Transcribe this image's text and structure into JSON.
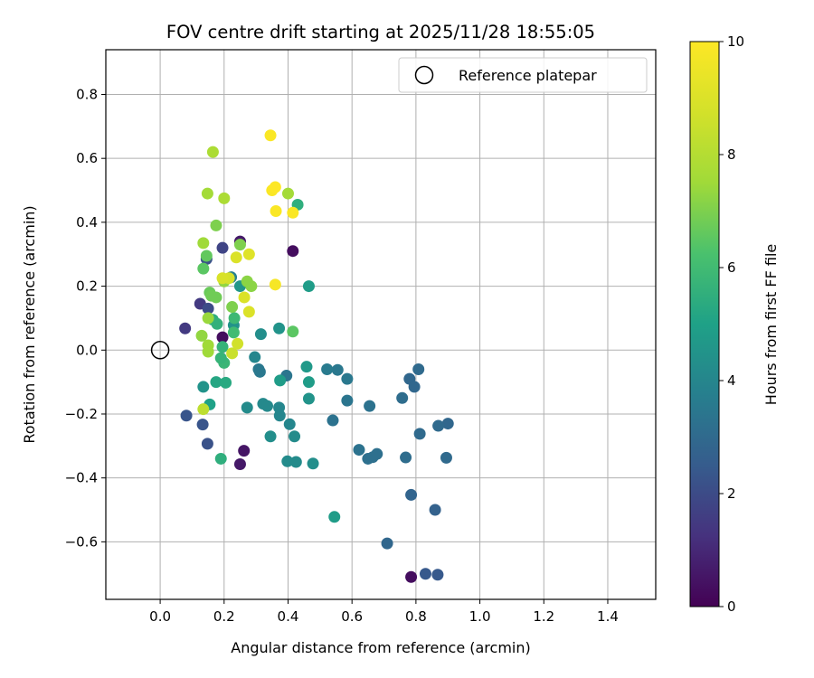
{
  "chart_data": {
    "type": "scatter",
    "title": "FOV centre drift starting at 2025/11/28 18:55:05",
    "xlabel": "Angular distance from reference (arcmin)",
    "ylabel": "Rotation from reference (arcmin)",
    "xlim": [
      -0.17,
      1.55
    ],
    "ylim": [
      -0.78,
      0.94
    ],
    "xticks": [
      0.0,
      0.2,
      0.4,
      0.6,
      0.8,
      1.0,
      1.2,
      1.4
    ],
    "xtick_labels": [
      "0.0",
      "0.2",
      "0.4",
      "0.6",
      "0.8",
      "1.0",
      "1.2",
      "1.4"
    ],
    "yticks": [
      0.8,
      0.6,
      0.4,
      0.2,
      0.0,
      -0.2,
      -0.4,
      -0.6
    ],
    "ytick_labels": [
      "0.8",
      "0.6",
      "0.4",
      "0.2",
      "0.0",
      "−0.2",
      "−0.4",
      "−0.6"
    ],
    "grid": true,
    "legend": {
      "position": "top-right",
      "entries": [
        "Reference platepar"
      ]
    },
    "reference_point": {
      "x": 0.0,
      "y": 0.0,
      "label": "Reference platepar"
    },
    "colorbar": {
      "label": "Hours from first FF file",
      "range": [
        0,
        10
      ],
      "ticks": [
        0,
        2,
        4,
        6,
        8,
        10
      ],
      "tick_labels": [
        "0",
        "2",
        "4",
        "6",
        "8",
        "10"
      ],
      "colormap": "viridis"
    },
    "series": [
      {
        "points": [
          {
            "x": 0.415,
            "y": 0.31,
            "h": 0.3
          },
          {
            "x": 0.195,
            "y": 0.04,
            "h": 0.3
          },
          {
            "x": 0.25,
            "y": 0.34,
            "h": 0.6
          },
          {
            "x": 0.262,
            "y": -0.315,
            "h": 0.5
          },
          {
            "x": 0.25,
            "y": -0.357,
            "h": 0.6
          },
          {
            "x": 0.785,
            "y": -0.71,
            "h": 0.3
          },
          {
            "x": 0.078,
            "y": 0.068,
            "h": 1.5
          },
          {
            "x": 0.125,
            "y": 0.145,
            "h": 1.5
          },
          {
            "x": 0.195,
            "y": 0.32,
            "h": 1.8
          },
          {
            "x": 0.15,
            "y": 0.13,
            "h": 2.0
          },
          {
            "x": 0.145,
            "y": 0.285,
            "h": 2.2
          },
          {
            "x": 0.082,
            "y": -0.205,
            "h": 2.3
          },
          {
            "x": 0.133,
            "y": -0.233,
            "h": 2.3
          },
          {
            "x": 0.148,
            "y": -0.293,
            "h": 2.2
          },
          {
            "x": 0.83,
            "y": -0.7,
            "h": 2.4
          },
          {
            "x": 0.868,
            "y": -0.703,
            "h": 2.4
          },
          {
            "x": 0.785,
            "y": -0.453,
            "h": 2.8
          },
          {
            "x": 0.86,
            "y": -0.5,
            "h": 2.7
          },
          {
            "x": 0.71,
            "y": -0.605,
            "h": 2.9
          },
          {
            "x": 0.9,
            "y": -0.23,
            "h": 2.9
          },
          {
            "x": 0.87,
            "y": -0.237,
            "h": 3.0
          },
          {
            "x": 0.895,
            "y": -0.337,
            "h": 3.0
          },
          {
            "x": 0.78,
            "y": -0.09,
            "h": 2.9
          },
          {
            "x": 0.795,
            "y": -0.115,
            "h": 2.9
          },
          {
            "x": 0.808,
            "y": -0.06,
            "h": 3.0
          },
          {
            "x": 0.812,
            "y": -0.262,
            "h": 3.0
          },
          {
            "x": 0.757,
            "y": -0.15,
            "h": 3.1
          },
          {
            "x": 0.768,
            "y": -0.336,
            "h": 3.1
          },
          {
            "x": 0.65,
            "y": -0.34,
            "h": 3.2
          },
          {
            "x": 0.665,
            "y": -0.335,
            "h": 3.2
          },
          {
            "x": 0.678,
            "y": -0.325,
            "h": 3.2
          },
          {
            "x": 0.622,
            "y": -0.312,
            "h": 3.3
          },
          {
            "x": 0.655,
            "y": -0.175,
            "h": 3.3
          },
          {
            "x": 0.54,
            "y": -0.22,
            "h": 3.3
          },
          {
            "x": 0.585,
            "y": -0.158,
            "h": 3.4
          },
          {
            "x": 0.585,
            "y": -0.09,
            "h": 3.5
          },
          {
            "x": 0.555,
            "y": -0.062,
            "h": 3.5
          },
          {
            "x": 0.522,
            "y": -0.06,
            "h": 3.6
          },
          {
            "x": 0.395,
            "y": -0.08,
            "h": 3.4
          },
          {
            "x": 0.308,
            "y": -0.06,
            "h": 3.5
          },
          {
            "x": 0.312,
            "y": -0.068,
            "h": 3.5
          },
          {
            "x": 0.296,
            "y": -0.022,
            "h": 4.0
          },
          {
            "x": 0.315,
            "y": 0.05,
            "h": 4.3
          },
          {
            "x": 0.372,
            "y": 0.068,
            "h": 4.5
          },
          {
            "x": 0.372,
            "y": -0.18,
            "h": 4.0
          },
          {
            "x": 0.374,
            "y": -0.205,
            "h": 4.0
          },
          {
            "x": 0.405,
            "y": -0.232,
            "h": 4.0
          },
          {
            "x": 0.42,
            "y": -0.27,
            "h": 4.2
          },
          {
            "x": 0.345,
            "y": -0.27,
            "h": 4.3
          },
          {
            "x": 0.398,
            "y": -0.348,
            "h": 4.2
          },
          {
            "x": 0.425,
            "y": -0.35,
            "h": 4.2
          },
          {
            "x": 0.478,
            "y": -0.355,
            "h": 4.3
          },
          {
            "x": 0.322,
            "y": -0.168,
            "h": 4.1
          },
          {
            "x": 0.335,
            "y": -0.175,
            "h": 4.1
          },
          {
            "x": 0.272,
            "y": -0.18,
            "h": 4.2
          },
          {
            "x": 0.465,
            "y": -0.152,
            "h": 4.5
          },
          {
            "x": 0.465,
            "y": -0.1,
            "h": 4.8
          },
          {
            "x": 0.458,
            "y": -0.052,
            "h": 4.7
          },
          {
            "x": 0.375,
            "y": -0.095,
            "h": 4.8
          },
          {
            "x": 0.545,
            "y": -0.522,
            "h": 4.8
          },
          {
            "x": 0.135,
            "y": -0.115,
            "h": 4.5
          },
          {
            "x": 0.23,
            "y": 0.078,
            "h": 4.5
          },
          {
            "x": 0.222,
            "y": 0.228,
            "h": 3.8
          },
          {
            "x": 0.25,
            "y": 0.2,
            "h": 4.6
          },
          {
            "x": 0.465,
            "y": 0.2,
            "h": 4.8
          },
          {
            "x": 0.155,
            "y": -0.17,
            "h": 5.0
          },
          {
            "x": 0.19,
            "y": -0.34,
            "h": 5.5
          },
          {
            "x": 0.175,
            "y": -0.1,
            "h": 5.2
          },
          {
            "x": 0.205,
            "y": -0.102,
            "h": 5.3
          },
          {
            "x": 0.43,
            "y": 0.455,
            "h": 5.5
          },
          {
            "x": 0.165,
            "y": 0.095,
            "h": 5.5
          },
          {
            "x": 0.178,
            "y": 0.082,
            "h": 5.6
          },
          {
            "x": 0.195,
            "y": 0.01,
            "h": 5.7
          },
          {
            "x": 0.2,
            "y": -0.04,
            "h": 5.8
          },
          {
            "x": 0.19,
            "y": -0.025,
            "h": 5.7
          },
          {
            "x": 0.232,
            "y": 0.1,
            "h": 5.9
          },
          {
            "x": 0.23,
            "y": 0.055,
            "h": 6.0
          },
          {
            "x": 0.415,
            "y": 0.058,
            "h": 6.5
          },
          {
            "x": 0.135,
            "y": 0.255,
            "h": 6.5
          },
          {
            "x": 0.145,
            "y": 0.295,
            "h": 6.6
          },
          {
            "x": 0.155,
            "y": 0.18,
            "h": 6.7
          },
          {
            "x": 0.175,
            "y": 0.165,
            "h": 6.8
          },
          {
            "x": 0.16,
            "y": 0.17,
            "h": 6.8
          },
          {
            "x": 0.175,
            "y": 0.39,
            "h": 7.0
          },
          {
            "x": 0.225,
            "y": 0.135,
            "h": 7.0
          },
          {
            "x": 0.272,
            "y": 0.215,
            "h": 7.2
          },
          {
            "x": 0.285,
            "y": 0.2,
            "h": 7.2
          },
          {
            "x": 0.25,
            "y": 0.33,
            "h": 7.0
          },
          {
            "x": 0.2,
            "y": 0.215,
            "h": 7.3
          },
          {
            "x": 0.13,
            "y": 0.045,
            "h": 7.3
          },
          {
            "x": 0.15,
            "y": 0.1,
            "h": 7.4
          },
          {
            "x": 0.15,
            "y": 0.015,
            "h": 7.5
          },
          {
            "x": 0.15,
            "y": -0.005,
            "h": 7.5
          },
          {
            "x": 0.135,
            "y": 0.335,
            "h": 7.5
          },
          {
            "x": 0.148,
            "y": 0.49,
            "h": 7.6
          },
          {
            "x": 0.4,
            "y": 0.49,
            "h": 7.6
          },
          {
            "x": 0.165,
            "y": 0.62,
            "h": 7.8
          },
          {
            "x": 0.2,
            "y": 0.475,
            "h": 7.8
          },
          {
            "x": 0.135,
            "y": -0.185,
            "h": 8.2
          },
          {
            "x": 0.225,
            "y": -0.01,
            "h": 8.5
          },
          {
            "x": 0.242,
            "y": 0.02,
            "h": 8.7
          },
          {
            "x": 0.215,
            "y": 0.225,
            "h": 8.8
          },
          {
            "x": 0.195,
            "y": 0.225,
            "h": 8.9
          },
          {
            "x": 0.238,
            "y": 0.29,
            "h": 9.0
          },
          {
            "x": 0.263,
            "y": 0.165,
            "h": 9.0
          },
          {
            "x": 0.278,
            "y": 0.3,
            "h": 9.1
          },
          {
            "x": 0.278,
            "y": 0.12,
            "h": 9.0
          },
          {
            "x": 0.36,
            "y": 0.205,
            "h": 9.8
          },
          {
            "x": 0.345,
            "y": 0.672,
            "h": 9.9
          },
          {
            "x": 0.35,
            "y": 0.5,
            "h": 9.9
          },
          {
            "x": 0.36,
            "y": 0.51,
            "h": 10.0
          },
          {
            "x": 0.362,
            "y": 0.435,
            "h": 9.9
          },
          {
            "x": 0.415,
            "y": 0.43,
            "h": 9.9
          }
        ]
      }
    ]
  }
}
